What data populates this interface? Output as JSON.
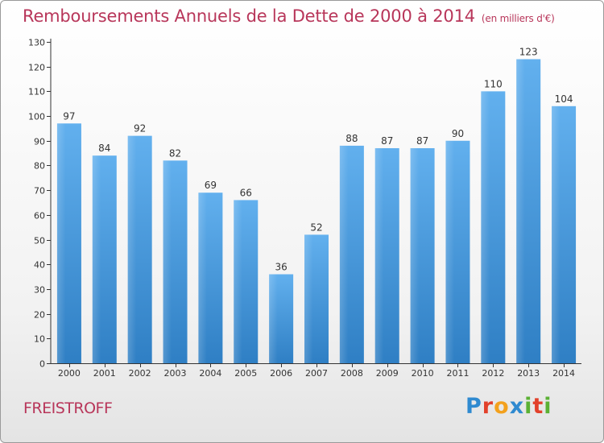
{
  "title": "Remboursements Annuels de la Dette de 2000 à 2014",
  "unit": "(en milliers d'€)",
  "commune": "FREISTROFF",
  "brand": {
    "letters": [
      "P",
      "r",
      "o",
      "x",
      "i",
      "t",
      "i"
    ],
    "colors": [
      "#2f8ad0",
      "#e2412b",
      "#f3a11d",
      "#2f8ad0",
      "#5bb134",
      "#e2412b",
      "#5bb134"
    ]
  },
  "chart_data": {
    "type": "bar",
    "categories": [
      "2000",
      "2001",
      "2002",
      "2003",
      "2004",
      "2005",
      "2006",
      "2007",
      "2008",
      "2009",
      "2010",
      "2011",
      "2012",
      "2013",
      "2014"
    ],
    "values": [
      97,
      84,
      92,
      82,
      69,
      66,
      36,
      52,
      88,
      87,
      87,
      90,
      110,
      123,
      104
    ],
    "title": "Remboursements Annuels de la Dette de 2000 à 2014",
    "xlabel": "",
    "ylabel": "en milliers d'€",
    "ylim": [
      0,
      130
    ],
    "yticks": [
      0,
      10,
      20,
      30,
      40,
      50,
      60,
      70,
      80,
      90,
      100,
      110,
      120,
      130
    ],
    "grid": false,
    "bar_color": "#4a9fe0"
  }
}
